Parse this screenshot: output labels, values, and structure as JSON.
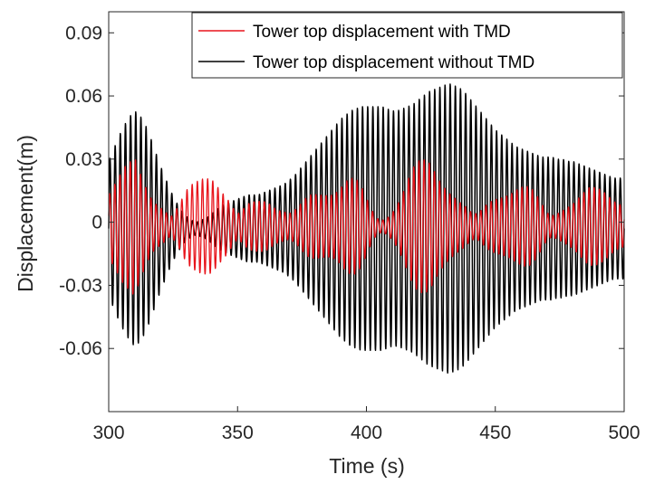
{
  "chart_data": {
    "type": "line",
    "xlabel": "Time (s)",
    "ylabel": "Displacement(m)",
    "xlim": [
      300,
      500
    ],
    "ylim": [
      -0.09,
      0.1
    ],
    "xticks": [
      300,
      350,
      400,
      450,
      500
    ],
    "xtick_labels": [
      "300",
      "350",
      "400",
      "450",
      "500"
    ],
    "yticks": [
      -0.06,
      -0.03,
      0,
      0.03,
      0.06,
      0.09
    ],
    "ytick_labels": [
      "-0.06",
      "-0.03",
      "0",
      "0.03",
      "0.06",
      "0.09"
    ],
    "grid": false,
    "legend_position": "top-right",
    "series": [
      {
        "name": "Tower top displacement with TMD",
        "color": "#e8141b",
        "x": [
          300,
          302,
          304,
          306,
          308,
          310,
          312,
          314,
          316,
          318,
          320,
          322,
          324,
          326,
          328,
          330,
          332,
          334,
          336,
          338,
          340,
          342,
          344,
          346,
          348,
          350,
          352,
          354,
          356,
          358,
          360,
          362,
          364,
          366,
          368,
          370,
          372,
          374,
          376,
          378,
          380,
          382,
          384,
          386,
          388,
          390,
          392,
          394,
          396,
          398,
          400,
          402,
          404,
          406,
          408,
          410,
          412,
          414,
          416,
          418,
          420,
          422,
          424,
          426,
          428,
          430,
          432,
          434,
          436,
          438,
          440,
          442,
          444,
          446,
          448,
          450,
          452,
          454,
          456,
          458,
          460,
          462,
          464,
          466,
          468,
          470,
          472,
          474,
          476,
          478,
          480,
          482,
          484,
          486,
          488,
          490,
          492,
          494,
          496,
          498,
          500
        ],
        "amplitude": [
          0.018,
          0.021,
          0.024,
          0.028,
          0.031,
          0.037,
          0.033,
          0.028,
          0.022,
          0.017,
          0.013,
          0.009,
          0.005,
          0.008,
          0.012,
          0.017,
          0.021,
          0.025,
          0.03,
          0.034,
          0.035,
          0.029,
          0.022,
          0.016,
          0.01,
          0.006,
          0.008,
          0.011,
          0.013,
          0.015,
          0.017,
          0.017,
          0.014,
          0.011,
          0.009,
          0.007,
          0.008,
          0.01,
          0.013,
          0.016,
          0.018,
          0.02,
          0.022,
          0.023,
          0.024,
          0.025,
          0.026,
          0.025,
          0.023,
          0.019,
          0.014,
          0.009,
          0.005,
          0.004,
          0.006,
          0.01,
          0.015,
          0.02,
          0.025,
          0.029,
          0.031,
          0.032,
          0.033,
          0.032,
          0.03,
          0.028,
          0.025,
          0.021,
          0.016,
          0.012,
          0.008,
          0.006,
          0.007,
          0.01,
          0.013,
          0.016,
          0.019,
          0.022,
          0.024,
          0.025,
          0.024,
          0.022,
          0.019,
          0.015,
          0.011,
          0.007,
          0.006,
          0.008,
          0.011,
          0.014,
          0.016,
          0.018,
          0.019,
          0.02,
          0.019,
          0.018,
          0.017,
          0.016,
          0.015,
          0.015,
          0.015
        ]
      },
      {
        "name": "Tower top displacement without TMD",
        "color": "#000000",
        "x": [
          300,
          302,
          304,
          306,
          308,
          310,
          312,
          314,
          316,
          318,
          320,
          322,
          324,
          326,
          328,
          330,
          332,
          334,
          336,
          338,
          340,
          342,
          344,
          346,
          348,
          350,
          352,
          354,
          356,
          358,
          360,
          362,
          364,
          366,
          368,
          370,
          372,
          374,
          376,
          378,
          380,
          382,
          384,
          386,
          388,
          390,
          392,
          394,
          396,
          398,
          400,
          402,
          404,
          406,
          408,
          410,
          412,
          414,
          416,
          418,
          420,
          422,
          424,
          426,
          428,
          430,
          432,
          434,
          436,
          438,
          440,
          442,
          444,
          446,
          448,
          450,
          452,
          454,
          456,
          458,
          460,
          462,
          464,
          466,
          468,
          470,
          472,
          474,
          476,
          478,
          480,
          482,
          484,
          486,
          488,
          490,
          492,
          494,
          496,
          498,
          500
        ],
        "amplitude": [
          0.032,
          0.038,
          0.044,
          0.049,
          0.053,
          0.056,
          0.054,
          0.05,
          0.044,
          0.037,
          0.03,
          0.024,
          0.018,
          0.013,
          0.009,
          0.006,
          0.004,
          0.003,
          0.004,
          0.005,
          0.007,
          0.009,
          0.011,
          0.012,
          0.013,
          0.014,
          0.015,
          0.016,
          0.016,
          0.016,
          0.017,
          0.018,
          0.019,
          0.02,
          0.021,
          0.023,
          0.025,
          0.028,
          0.031,
          0.034,
          0.037,
          0.04,
          0.043,
          0.046,
          0.049,
          0.052,
          0.054,
          0.056,
          0.057,
          0.058,
          0.058,
          0.058,
          0.058,
          0.058,
          0.057,
          0.056,
          0.056,
          0.057,
          0.058,
          0.059,
          0.061,
          0.063,
          0.065,
          0.066,
          0.067,
          0.068,
          0.069,
          0.068,
          0.067,
          0.065,
          0.062,
          0.059,
          0.056,
          0.053,
          0.05,
          0.047,
          0.045,
          0.043,
          0.041,
          0.039,
          0.038,
          0.037,
          0.036,
          0.035,
          0.034,
          0.034,
          0.034,
          0.033,
          0.033,
          0.032,
          0.032,
          0.031,
          0.03,
          0.029,
          0.028,
          0.027,
          0.026,
          0.025,
          0.024,
          0.024,
          0.024
        ]
      }
    ]
  }
}
